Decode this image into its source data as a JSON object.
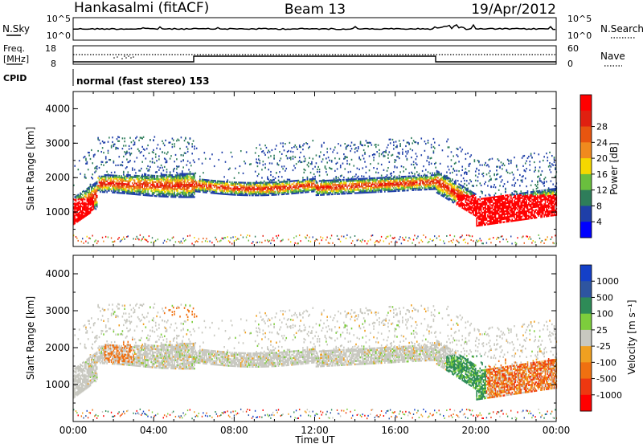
{
  "header": {
    "station": "Hankasalmi (fitACF)",
    "beam": "Beam 13",
    "date": "19/Apr/2012"
  },
  "status_panels": {
    "nsky_label": "N.Sky",
    "nsky_ticks": [
      "10^5",
      "10^0"
    ],
    "nsearch_label": "N.Search",
    "nsearch_ticks": [
      "10^5",
      "10^0"
    ],
    "freq_label_1": "Freq.",
    "freq_label_2": "[MHz]",
    "freq_ticks": [
      "18",
      "8"
    ],
    "nave_label": "Nave",
    "nave_ticks": [
      "60",
      "0"
    ],
    "cpid_label": "CPID",
    "cpid_text": "normal (fast stereo) 153"
  },
  "chart_data": [
    {
      "type": "heatmap",
      "title": "",
      "xlabel": "",
      "ylabel": "Slant Range [km]",
      "xlim": [
        "00:00",
        "24:00"
      ],
      "ylim": [
        0,
        4500
      ],
      "yticks": [
        "1000",
        "2000",
        "3000",
        "4000"
      ],
      "colorbar": {
        "label": "Power [dB]",
        "ticks": [
          "4",
          "8",
          "12",
          "16",
          "20",
          "24",
          "28"
        ],
        "colors": [
          "#0000ff",
          "#1f3fa8",
          "#2e7d5a",
          "#6abf3e",
          "#f5d800",
          "#f08a1e",
          "#e8550f",
          "#e02010",
          "#ff0000"
        ]
      }
    },
    {
      "type": "heatmap",
      "title": "",
      "xlabel": "Time UT",
      "ylabel": "Slant Range [km]",
      "xlim": [
        "00:00",
        "24:00"
      ],
      "ylim": [
        0,
        4500
      ],
      "xticks": [
        "00:00",
        "04:00",
        "08:00",
        "12:00",
        "16:00",
        "20:00",
        "00:00"
      ],
      "yticks": [
        "1000",
        "2000",
        "3000",
        "4000"
      ],
      "colorbar": {
        "label": "Velocity [m s⁻¹]",
        "ticks": [
          "1000",
          "500",
          "100",
          "25",
          "-25",
          "-100",
          "-500",
          "-1000"
        ],
        "colors": [
          "#1440c8",
          "#2e55a0",
          "#2e8b57",
          "#7dcd3c",
          "#c8c8c0",
          "#f0a020",
          "#f07010",
          "#ee3810",
          "#ff0000"
        ]
      }
    }
  ]
}
